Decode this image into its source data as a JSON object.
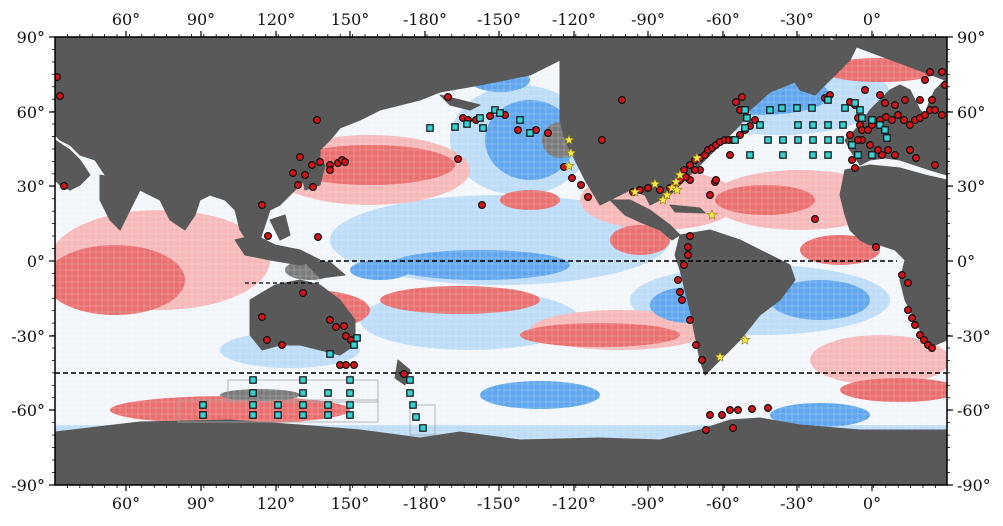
{
  "map": {
    "top_lon_labels": [
      "60°",
      "90°",
      "120°",
      "150°",
      "-180°",
      "-150°",
      "-120°",
      "-90°",
      "-60°",
      "-30°",
      "0°"
    ],
    "bottom_lon_labels": [
      "60°",
      "90°",
      "120°",
      "150°",
      "-180°",
      "-150°",
      "-120°",
      "-90°",
      "-60°",
      "-30°",
      "0°"
    ],
    "left_lat_labels": [
      "90°",
      "60°",
      "30°",
      "0°",
      "-30°",
      "-60°",
      "-90°"
    ],
    "right_lat_labels": [
      "90°",
      "60°",
      "30°",
      "0°",
      "-30°",
      "-60°",
      "-90°"
    ],
    "colors": {
      "land": "#595959",
      "warm_strong": "#ea6f6f",
      "warm_light": "#f6b8b8",
      "cool_strong": "#5fa6ee",
      "cool_light": "#bcdcf7",
      "neutral": "#f2f6fb",
      "site_circle": "#d4141a",
      "site_square": "#37d3d3",
      "site_star": "#f5e64a",
      "reference_line": "#000000"
    },
    "marker_types": [
      "red-circle-site",
      "cyan-square-site",
      "yellow-star-site"
    ]
  }
}
